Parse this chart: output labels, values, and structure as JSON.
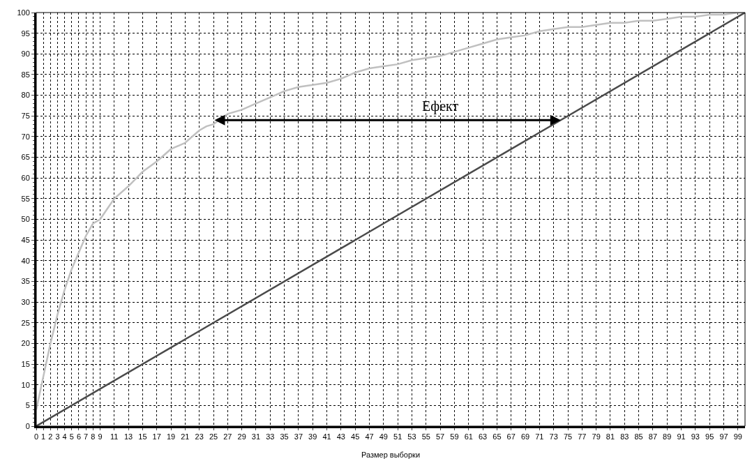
{
  "chart_data": {
    "type": "line",
    "xlabel": "Размер выборки",
    "xlim": [
      0,
      100
    ],
    "xticks": [
      0,
      1,
      2,
      3,
      4,
      5,
      6,
      7,
      8,
      9,
      11,
      13,
      15,
      17,
      19,
      21,
      23,
      25,
      27,
      29,
      31,
      33,
      35,
      37,
      39,
      41,
      43,
      45,
      47,
      49,
      51,
      53,
      55,
      57,
      59,
      61,
      63,
      65,
      67,
      69,
      71,
      73,
      75,
      77,
      79,
      81,
      83,
      85,
      87,
      89,
      91,
      93,
      95,
      97,
      99
    ],
    "ylim": [
      0,
      100
    ],
    "yticks": [
      0,
      5,
      10,
      15,
      20,
      25,
      30,
      35,
      40,
      45,
      50,
      55,
      60,
      65,
      70,
      75,
      80,
      85,
      90,
      95,
      100
    ],
    "grid": true,
    "marker": "none",
    "line_style": "solid",
    "series": [
      {
        "color": "#c0c0c0",
        "x": [
          0,
          1,
          2,
          3,
          4,
          5,
          6,
          7,
          8,
          9,
          11,
          13,
          15,
          17,
          19,
          21,
          23,
          24,
          25,
          27,
          29,
          31,
          33,
          35,
          37,
          39,
          41,
          43,
          45,
          47,
          49,
          51,
          53,
          55,
          57,
          59,
          61,
          63,
          65,
          67,
          69,
          71,
          73,
          75,
          77,
          79,
          81,
          83,
          85,
          87,
          89,
          91,
          93,
          95,
          97,
          99,
          100
        ],
        "values": [
          4,
          12,
          20,
          27,
          33,
          38,
          42,
          46,
          49,
          50,
          55,
          58,
          61.5,
          64,
          67,
          68.5,
          71.5,
          72.5,
          73,
          75.5,
          76.5,
          78,
          79.5,
          81,
          82,
          82.5,
          83,
          84,
          85.5,
          86.5,
          87,
          87.5,
          88.5,
          89,
          89.5,
          90.5,
          91.5,
          92.5,
          93.5,
          94,
          94.5,
          95.5,
          96,
          96.5,
          96.5,
          97,
          97.5,
          97.5,
          98,
          98,
          98.5,
          99,
          99,
          99.5,
          99.5,
          100,
          100
        ]
      },
      {
        "color": "#4a4a4a",
        "x": [
          0,
          100
        ],
        "values": [
          0,
          100
        ]
      }
    ],
    "annotations": [
      "Ефект"
    ]
  }
}
